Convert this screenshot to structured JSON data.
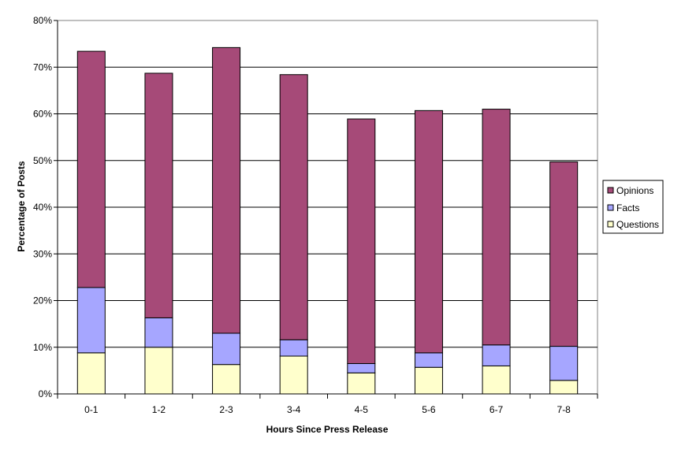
{
  "chart_data": {
    "type": "bar",
    "stacked": true,
    "categories": [
      "0-1",
      "1-2",
      "2-3",
      "3-4",
      "4-5",
      "5-6",
      "6-7",
      "7-8"
    ],
    "series": [
      {
        "name": "Questions",
        "color": "#FFFFCC",
        "values": [
          8.8,
          10.0,
          6.3,
          8.1,
          4.5,
          5.7,
          6.0,
          2.9
        ]
      },
      {
        "name": "Facts",
        "color": "#A6A6FF",
        "values": [
          14.0,
          6.3,
          6.7,
          3.5,
          2.0,
          3.1,
          4.5,
          7.3
        ]
      },
      {
        "name": "Opinions",
        "color": "#A64A78",
        "values": [
          50.6,
          52.4,
          61.2,
          56.8,
          52.4,
          51.9,
          50.5,
          39.5
        ]
      }
    ],
    "xlabel": "Hours Since Press Release",
    "ylabel": "Percentage of Posts",
    "ylim": [
      0,
      80
    ],
    "yticks": [
      "0%",
      "10%",
      "20%",
      "30%",
      "40%",
      "50%",
      "60%",
      "70%",
      "80%"
    ],
    "grid": true,
    "legend": {
      "placement": "right",
      "entries": [
        "Opinions",
        "Facts",
        "Questions"
      ]
    }
  }
}
